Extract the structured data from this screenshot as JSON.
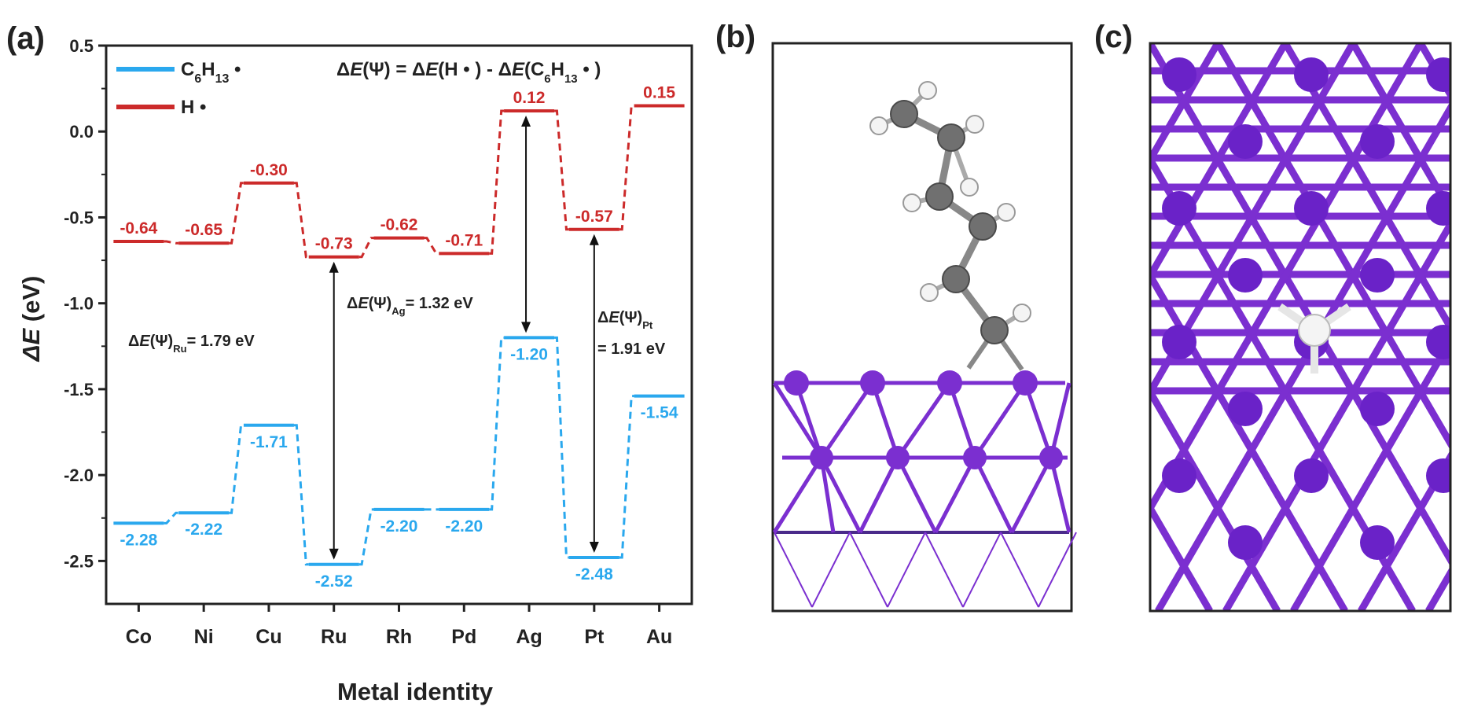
{
  "panel_labels": {
    "a": "(a)",
    "b": "(b)",
    "c": "(c)"
  },
  "colors": {
    "c6h13": "#2aa8ee",
    "h": "#cc2a2a",
    "metal": "#7b2fd0",
    "carbon": "#6f6f6f",
    "hydrogen": "#f2f2f2"
  },
  "chart_data": {
    "type": "energy-level",
    "categories": [
      "Co",
      "Ni",
      "Cu",
      "Ru",
      "Rh",
      "Pd",
      "Ag",
      "Pt",
      "Au"
    ],
    "series": [
      {
        "name": "C₆H₁₃ •",
        "color": "#2aa8ee",
        "values": [
          -2.28,
          -2.22,
          -1.71,
          -2.52,
          -2.2,
          -2.2,
          -1.2,
          -2.48,
          -1.54
        ],
        "labels": [
          "-2.28",
          "-2.22",
          "-1.71",
          "-2.52",
          "-2.20",
          "-2.20",
          "-1.20",
          "-2.48",
          "-1.54"
        ]
      },
      {
        "name": "H •",
        "color": "#cc2a2a",
        "values": [
          -0.64,
          -0.65,
          -0.3,
          -0.73,
          -0.62,
          -0.71,
          0.12,
          -0.57,
          0.15
        ],
        "labels": [
          "-0.64",
          "-0.65",
          "-0.30",
          "-0.73",
          "-0.62",
          "-0.71",
          "0.12",
          "-0.57",
          "0.15"
        ]
      }
    ],
    "xlabel": "Metal identity",
    "ylabel": "ΔE (eV)",
    "ylim": [
      -2.75,
      0.5
    ],
    "yticks": [
      "0.5",
      "0.0",
      "-0.5",
      "-1.0",
      "-1.5",
      "-2.0",
      "-2.5"
    ],
    "ytick_values": [
      0.5,
      0.0,
      -0.5,
      -1.0,
      -1.5,
      -2.0,
      -2.5
    ],
    "formula": "ΔE(Ψ) = ΔE(H • ) - ΔE(C₆H₁₃ • )",
    "legend_position": "top-left",
    "annotations": [
      {
        "metal": "Ru",
        "value": 1.79,
        "text": "ΔE(Ψ)Ru= 1.79 eV"
      },
      {
        "metal": "Ag",
        "value": 1.32,
        "text": "ΔE(Ψ)Ag= 1.32 eV"
      },
      {
        "metal": "Pt",
        "value": 1.91,
        "text_line1": "ΔE(Ψ)Pt",
        "text_line2": "= 1.91 eV"
      }
    ]
  }
}
